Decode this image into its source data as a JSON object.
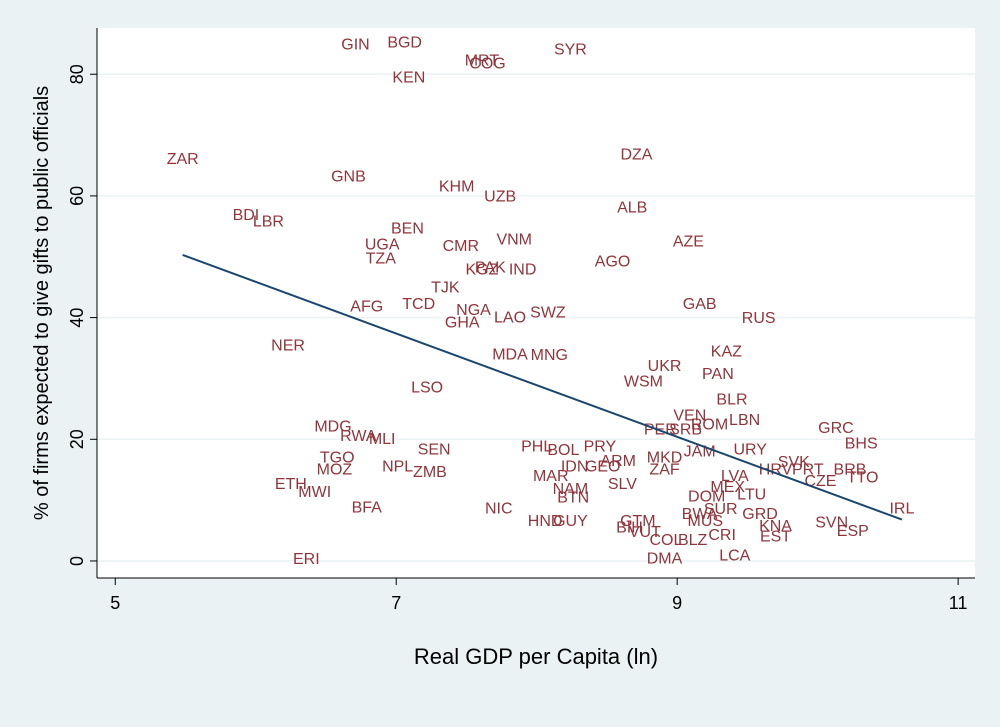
{
  "chart_data": {
    "type": "scatter",
    "x_label": "Real GDP per Capita (ln)",
    "y_label": "% of firms expected to give gifts to public officials",
    "xlim": [
      4.87,
      11.12
    ],
    "ylim": [
      -2.8,
      87.6
    ],
    "xticks": [
      5,
      7,
      9,
      11
    ],
    "yticks": [
      0,
      20,
      40,
      60,
      80
    ],
    "grid": true,
    "color": "#90353b",
    "labels": [
      "GIN",
      "BGD",
      "MRT",
      "COG",
      "SYR",
      "KEN",
      "ZAR",
      "DZA",
      "GNB",
      "KHM",
      "UZB",
      "ALB",
      "BDI",
      "LBR",
      "BEN",
      "AZE",
      "VNM",
      "UGA",
      "CMR",
      "TZA",
      "AGO",
      "PAK",
      "KGZ",
      "IND",
      "TJK",
      "AFG",
      "TCD",
      "NGA",
      "SWZ",
      "GAB",
      "LAO",
      "GHA",
      "RUS",
      "NER",
      "MDA",
      "MNG",
      "KAZ",
      "UKR",
      "PAN",
      "WSM",
      "LSO",
      "BLR",
      "VEN",
      "PER",
      "SRB",
      "ROM",
      "LBN",
      "MDG",
      "RWA",
      "MLI",
      "GRC",
      "BHS",
      "SEN",
      "PHL",
      "BOL",
      "PRY",
      "TGO",
      "ARM",
      "MKD",
      "JAM",
      "URY",
      "SVK",
      "NPL",
      "MOZ",
      "ZMB",
      "IDN",
      "GEO",
      "ZAF",
      "HRV",
      "PRT",
      "BRB",
      "TTO",
      "MAR",
      "LVA",
      "CZE",
      "ETH",
      "SLV",
      "NAM",
      "MEX",
      "MWI",
      "DOM",
      "LTU",
      "BTN",
      "BIH",
      "IRL",
      "BFA",
      "NIC",
      "BWA",
      "GRD",
      "SUR",
      "HND",
      "GUY",
      "GTM",
      "MUS",
      "SVN",
      "KNA",
      "ESP",
      "VUT",
      "CRI",
      "EST",
      "COL",
      "BLZ",
      "ERI",
      "DMA",
      "LCA"
    ],
    "x": [
      6.71,
      7.06,
      7.61,
      7.65,
      8.24,
      7.09,
      5.48,
      8.71,
      6.66,
      7.43,
      7.74,
      8.68,
      5.93,
      6.09,
      7.08,
      9.08,
      7.84,
      6.9,
      7.46,
      6.89,
      8.54,
      7.67,
      7.61,
      7.9,
      7.35,
      6.79,
      7.16,
      7.55,
      8.08,
      9.16,
      7.81,
      7.47,
      9.58,
      6.23,
      7.81,
      8.09,
      9.35,
      8.91,
      9.29,
      8.76,
      7.22,
      9.39,
      9.09,
      8.88,
      9.06,
      9.23,
      9.48,
      6.55,
      6.73,
      6.9,
      10.13,
      10.31,
      7.27,
      8.0,
      8.19,
      8.45,
      6.58,
      8.58,
      8.91,
      9.16,
      9.52,
      9.83,
      7.01,
      6.56,
      7.24,
      8.27,
      8.47,
      8.91,
      9.7,
      9.93,
      10.23,
      10.32,
      8.1,
      9.41,
      10.02,
      6.25,
      8.61,
      8.24,
      9.36,
      6.42,
      9.21,
      9.53,
      8.26,
      8.66,
      10.6,
      6.79,
      7.73,
      9.16,
      9.59,
      9.31,
      8.06,
      8.24,
      8.72,
      9.2,
      10.1,
      9.7,
      10.25,
      8.77,
      9.32,
      9.7,
      8.92,
      9.11,
      6.36,
      8.91,
      9.41
    ],
    "values": [
      84.8,
      85.1,
      82.1,
      81.6,
      83.9,
      79.3,
      65.9,
      66.7,
      63.1,
      61.4,
      59.8,
      58.0,
      56.7,
      55.7,
      54.5,
      52.4,
      52.7,
      51.9,
      51.6,
      49.6,
      49.1,
      48.1,
      47.8,
      47.8,
      44.8,
      41.7,
      42.1,
      41.1,
      40.7,
      42.1,
      39.9,
      39.1,
      39.8,
      35.3,
      33.8,
      33.7,
      34.3,
      31.9,
      30.6,
      29.4,
      28.4,
      26.4,
      23.8,
      21.5,
      21.5,
      22.3,
      23.0,
      22.0,
      20.4,
      19.9,
      21.7,
      19.2,
      18.2,
      18.7,
      18.1,
      18.7,
      16.9,
      16.3,
      16.9,
      17.9,
      18.2,
      16.1,
      15.4,
      14.9,
      14.5,
      15.4,
      15.4,
      14.9,
      14.9,
      14.9,
      14.9,
      13.6,
      13.8,
      13.8,
      13.0,
      12.5,
      12.5,
      11.7,
      12.0,
      11.2,
      10.5,
      10.8,
      10.3,
      5.4,
      8.5,
      8.7,
      8.5,
      7.6,
      7.6,
      8.4,
      6.4,
      6.4,
      6.4,
      6.4,
      6.2,
      5.6,
      4.8,
      4.6,
      4.1,
      3.9,
      3.3,
      3.3,
      0.2,
      0.3,
      0.8
    ],
    "fit": {
      "x": [
        5.48,
        10.6
      ],
      "y": [
        50.3,
        6.8
      ],
      "color": "#1a476f"
    }
  }
}
